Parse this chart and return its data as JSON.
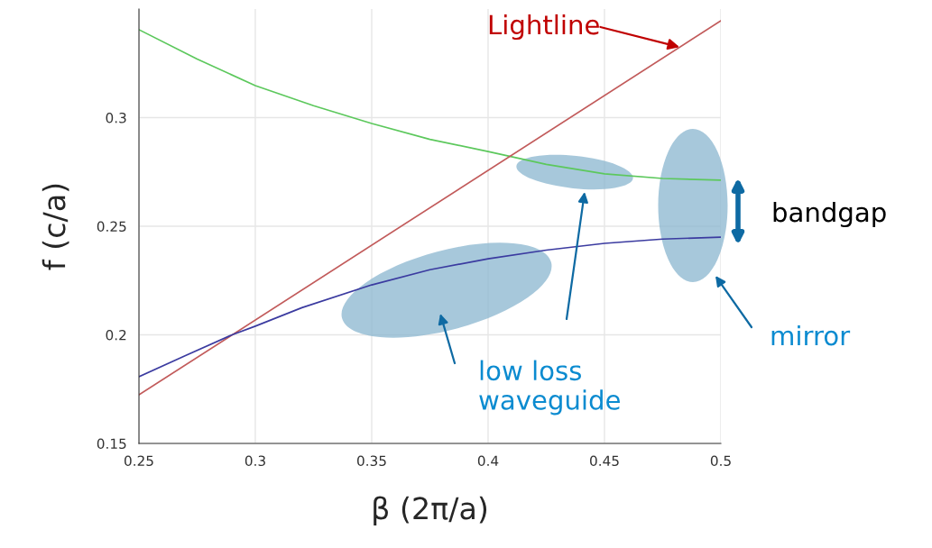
{
  "chart_data": {
    "type": "line",
    "xlabel": "β (2π/a)",
    "ylabel": "f (c/a)",
    "xlim": [
      0.25,
      0.5
    ],
    "ylim": [
      0.15,
      0.35
    ],
    "xticks": [
      0.25,
      0.3,
      0.35,
      0.4,
      0.45,
      0.5
    ],
    "yticks": [
      0.15,
      0.2,
      0.25,
      0.3
    ],
    "grid": true,
    "marker": "none",
    "line_style": "solid",
    "series": [
      {
        "color": "#5cc85c",
        "x": [
          0.25,
          0.275,
          0.3,
          0.325,
          0.35,
          0.375,
          0.4,
          0.425,
          0.45,
          0.475,
          0.5
        ],
        "values": [
          0.3405,
          0.327,
          0.3147,
          0.3055,
          0.2973,
          0.29,
          0.2844,
          0.2785,
          0.2741,
          0.272,
          0.2712
        ]
      },
      {
        "color": "#c25b5b",
        "x": [
          0.25,
          0.5
        ],
        "values": [
          0.1724,
          0.3446
        ]
      },
      {
        "color": "#3b3ba0",
        "x": [
          0.25,
          0.27,
          0.29,
          0.3,
          0.32,
          0.35,
          0.375,
          0.4,
          0.425,
          0.45,
          0.475,
          0.5
        ],
        "values": [
          0.1807,
          0.1905,
          0.2,
          0.204,
          0.2125,
          0.223,
          0.23,
          0.235,
          0.239,
          0.2421,
          0.2441,
          0.245
        ]
      }
    ],
    "annotations": [
      {
        "text": "Lightline",
        "x": 0.4822,
        "y": 0.3325
      },
      "bandgap",
      "low loss\nwaveguide",
      "mirror"
    ]
  }
}
